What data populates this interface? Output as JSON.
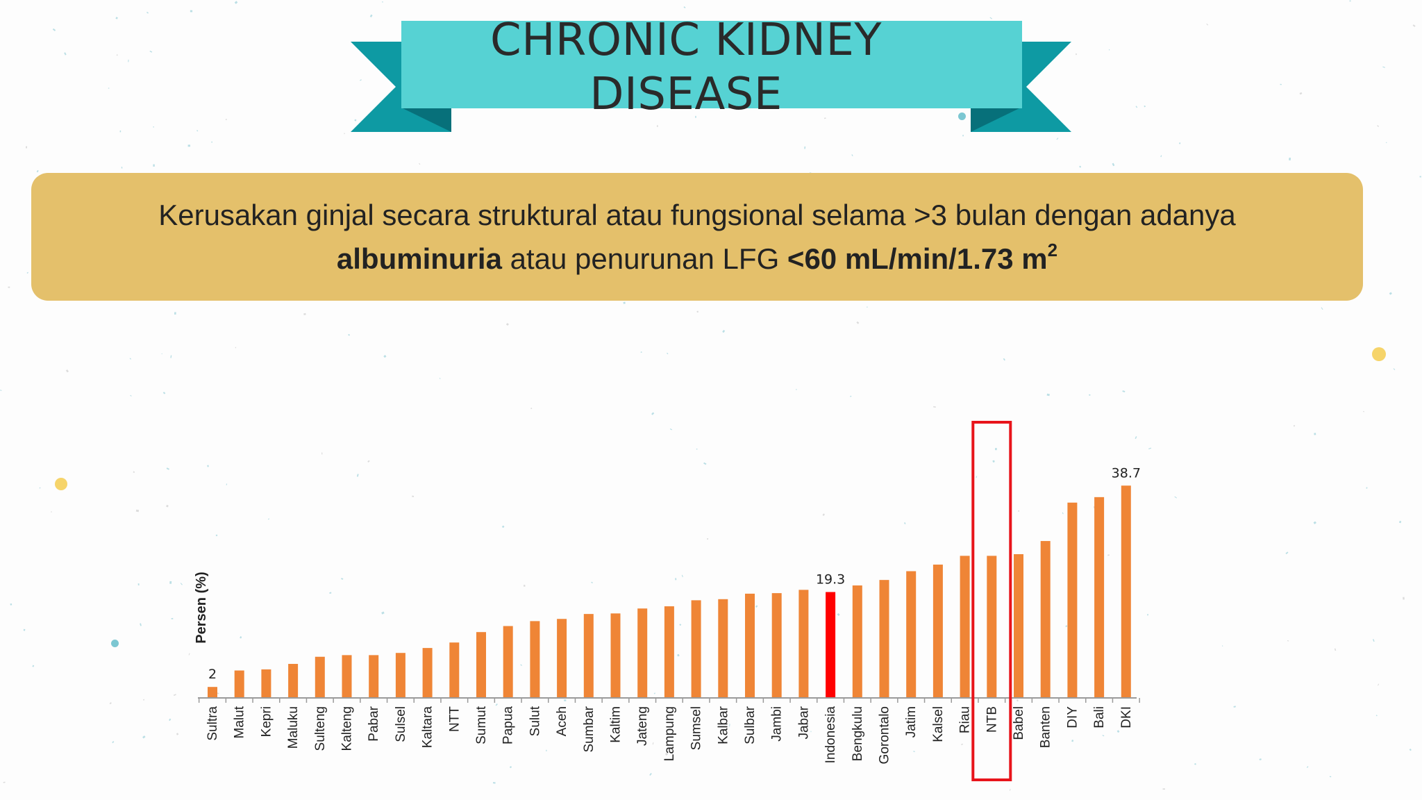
{
  "title": "CHRONIC KIDNEY DISEASE",
  "definition": {
    "line1": "Kerusakan ginjal secara struktural atau fungsional selama >3 bulan dengan adanya",
    "line2_bold1": "albuminuria",
    "line2_mid": " atau penurunan LFG ",
    "line2_bold2": "<60 mL/min/1.73 m",
    "line2_sup": "2"
  },
  "colors": {
    "ribbon_light": "#56d2d3",
    "ribbon_dark": "#0e9aa3",
    "box": "#e4c06b",
    "bar": "#ef8536",
    "bar_highlight": "#ff0000",
    "highlight_frame": "#e8141b"
  },
  "chart_data": {
    "type": "bar",
    "ylabel": "Persen (%)",
    "categories": [
      "Sultra",
      "Malut",
      "Kepri",
      "Maluku",
      "Sulteng",
      "Kalteng",
      "Pabar",
      "Sulsel",
      "Kaltara",
      "NTT",
      "Sumut",
      "Papua",
      "Sulut",
      "Aceh",
      "Sumbar",
      "Kaltim",
      "Jateng",
      "Lampung",
      "Sumsel",
      "Kalbar",
      "Sulbar",
      "Jambi",
      "Jabar",
      "Indonesia",
      "Bengkulu",
      "Gorontalo",
      "Jatim",
      "Kalsel",
      "Riau",
      "NTB",
      "Babel",
      "Banten",
      "DIY",
      "Bali",
      "DKI"
    ],
    "values": [
      2,
      5,
      5.2,
      6.2,
      7.5,
      7.8,
      7.8,
      8.2,
      9.1,
      10.1,
      12,
      13.1,
      14,
      14.4,
      15.3,
      15.4,
      16.3,
      16.7,
      17.8,
      18,
      19,
      19.1,
      19.7,
      19.3,
      20.5,
      21.5,
      23.1,
      24.3,
      25.9,
      25.9,
      26.2,
      28.6,
      35.6,
      36.6,
      38.7
    ],
    "highlight_bar": "Indonesia",
    "highlight_box": "NTB",
    "data_labels": [
      {
        "category": "Sultra",
        "text": "2"
      },
      {
        "category": "Indonesia",
        "text": "19.3"
      },
      {
        "category": "DKI",
        "text": "38.7"
      }
    ],
    "ylim": [
      0,
      40
    ],
    "grid": false,
    "legend": "none"
  }
}
